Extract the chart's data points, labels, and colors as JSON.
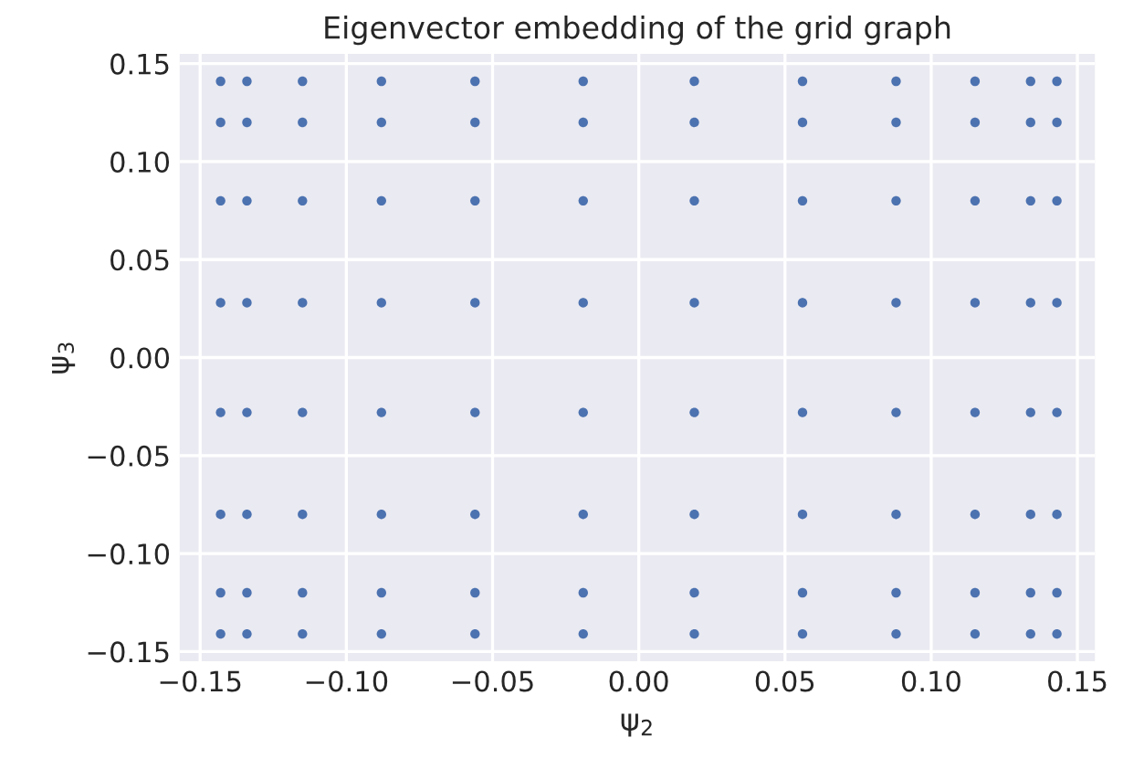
{
  "chart_data": {
    "type": "scatter",
    "title": "Eigenvector embedding of the grid graph",
    "xlabel": "ψ$_{2}$",
    "ylabel": "ψ$_{3}$",
    "xlim": [
      -0.157,
      0.156
    ],
    "ylim": [
      -0.155,
      0.155
    ],
    "xticks": [
      {
        "value": -0.15,
        "label": "−0.15"
      },
      {
        "value": -0.1,
        "label": "−0.10"
      },
      {
        "value": -0.05,
        "label": "−0.05"
      },
      {
        "value": 0,
        "label": "0.00"
      },
      {
        "value": 0.05,
        "label": "0.05"
      },
      {
        "value": 0.1,
        "label": "0.10"
      },
      {
        "value": 0.15,
        "label": "0.15"
      }
    ],
    "yticks": [
      {
        "value": -0.15,
        "label": "−0.15"
      },
      {
        "value": -0.1,
        "label": "−0.10"
      },
      {
        "value": -0.05,
        "label": "−0.05"
      },
      {
        "value": 0,
        "label": "0.00"
      },
      {
        "value": 0.05,
        "label": "0.05"
      },
      {
        "value": 0.1,
        "label": "0.10"
      },
      {
        "value": 0.15,
        "label": "0.15"
      }
    ],
    "grid": true,
    "marker": "circle",
    "series": [
      {
        "color": "#4c72b0",
        "x": [
          -0.143,
          -0.143,
          -0.143,
          -0.143,
          -0.143,
          -0.143,
          -0.143,
          -0.143,
          -0.134,
          -0.134,
          -0.134,
          -0.134,
          -0.134,
          -0.134,
          -0.134,
          -0.134,
          -0.115,
          -0.115,
          -0.115,
          -0.115,
          -0.115,
          -0.115,
          -0.115,
          -0.115,
          -0.088,
          -0.088,
          -0.088,
          -0.088,
          -0.088,
          -0.088,
          -0.088,
          -0.088,
          -0.056,
          -0.056,
          -0.056,
          -0.056,
          -0.056,
          -0.056,
          -0.056,
          -0.056,
          -0.019,
          -0.019,
          -0.019,
          -0.019,
          -0.019,
          -0.019,
          -0.019,
          -0.019,
          0.019,
          0.019,
          0.019,
          0.019,
          0.019,
          0.019,
          0.019,
          0.019,
          0.056,
          0.056,
          0.056,
          0.056,
          0.056,
          0.056,
          0.056,
          0.056,
          0.088,
          0.088,
          0.088,
          0.088,
          0.088,
          0.088,
          0.088,
          0.088,
          0.115,
          0.115,
          0.115,
          0.115,
          0.115,
          0.115,
          0.115,
          0.115,
          0.134,
          0.134,
          0.134,
          0.134,
          0.134,
          0.134,
          0.134,
          0.134,
          0.143,
          0.143,
          0.143,
          0.143,
          0.143,
          0.143,
          0.143,
          0.143
        ],
        "values": [
          0.141,
          0.12,
          0.08,
          0.028,
          -0.028,
          -0.08,
          -0.12,
          -0.141,
          0.141,
          0.12,
          0.08,
          0.028,
          -0.028,
          -0.08,
          -0.12,
          -0.141,
          0.141,
          0.12,
          0.08,
          0.028,
          -0.028,
          -0.08,
          -0.12,
          -0.141,
          0.141,
          0.12,
          0.08,
          0.028,
          -0.028,
          -0.08,
          -0.12,
          -0.141,
          0.141,
          0.12,
          0.08,
          0.028,
          -0.028,
          -0.08,
          -0.12,
          -0.141,
          0.141,
          0.12,
          0.08,
          0.028,
          -0.028,
          -0.08,
          -0.12,
          -0.141,
          0.141,
          0.12,
          0.08,
          0.028,
          -0.028,
          -0.08,
          -0.12,
          -0.141,
          0.141,
          0.12,
          0.08,
          0.028,
          -0.028,
          -0.08,
          -0.12,
          -0.141,
          0.141,
          0.12,
          0.08,
          0.028,
          -0.028,
          -0.08,
          -0.12,
          -0.141,
          0.141,
          0.12,
          0.08,
          0.028,
          -0.028,
          -0.08,
          -0.12,
          -0.141,
          0.141,
          0.12,
          0.08,
          0.028,
          -0.028,
          -0.08,
          -0.12,
          -0.141,
          0.141,
          0.12,
          0.08,
          0.028,
          -0.028,
          -0.08,
          -0.12,
          -0.141
        ]
      }
    ]
  }
}
